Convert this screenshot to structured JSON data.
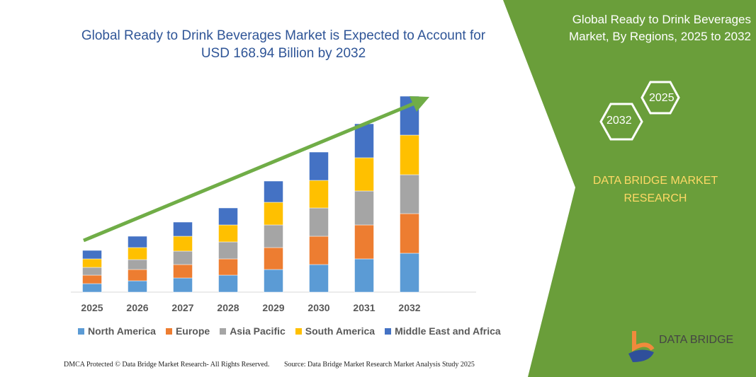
{
  "title": "Global Ready to Drink Beverages Market is Expected to Account for USD 168.94 Billion by 2032",
  "side_panel": {
    "title": "Global Ready to Drink Beverages Market, By Regions, 2025 to 2032",
    "hex_left": "2032",
    "hex_right": "2025",
    "brand": "DATA BRIDGE MARKET RESEARCH",
    "logo_text": "DATA BRIDGE",
    "color": "#6a9e3a"
  },
  "footer": {
    "left": "DMCA Protected © Data Bridge Market Research- All Rights Reserved.",
    "right": "Source: Data Bridge Market Research Market Analysis Study 2025"
  },
  "chart_data": {
    "type": "bar",
    "stacked": true,
    "categories": [
      "2025",
      "2026",
      "2027",
      "2028",
      "2029",
      "2030",
      "2031",
      "2032"
    ],
    "series": [
      {
        "name": "North America",
        "color": "#5b9bd5",
        "values": [
          12,
          16,
          20,
          24,
          32,
          39,
          47,
          55
        ]
      },
      {
        "name": "Europe",
        "color": "#ed7d31",
        "values": [
          12,
          16,
          19,
          23,
          31,
          40,
          48,
          56
        ]
      },
      {
        "name": "Asia Pacific",
        "color": "#a5a5a5",
        "values": [
          11,
          14,
          19,
          24,
          32,
          40,
          48,
          55
        ]
      },
      {
        "name": "South America",
        "color": "#ffc000",
        "values": [
          12,
          17,
          21,
          24,
          32,
          39,
          47,
          56
        ]
      },
      {
        "name": "Middle East and Africa",
        "color": "#4472c4",
        "values": [
          12,
          16,
          20,
          24,
          30,
          40,
          48,
          55
        ]
      }
    ],
    "legend": "bottom",
    "grid": false,
    "trend_arrow_color": "#70ad47"
  }
}
